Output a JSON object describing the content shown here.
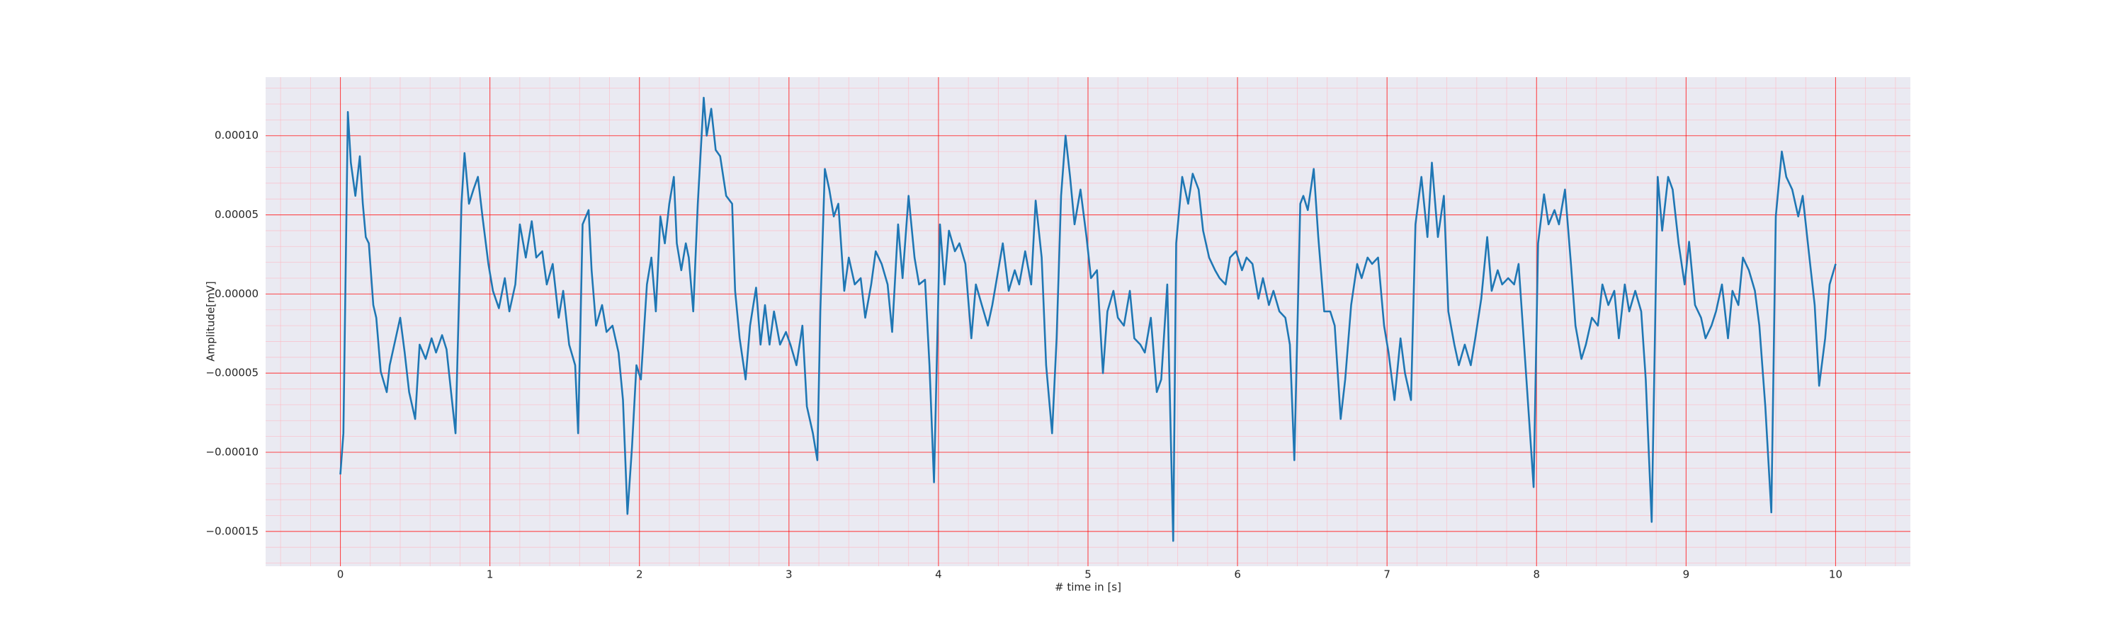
{
  "chart_data": {
    "type": "line",
    "xlabel": "# time in [s]",
    "ylabel": "Amplitude[mV]",
    "x": [
      0,
      0.02,
      0.05,
      0.07,
      0.1,
      0.13,
      0.15,
      0.17,
      0.19,
      0.22,
      0.24,
      0.27,
      0.31,
      0.33,
      0.37,
      0.4,
      0.43,
      0.46,
      0.5,
      0.53,
      0.57,
      0.61,
      0.64,
      0.68,
      0.71,
      0.74,
      0.77,
      0.81,
      0.83,
      0.86,
      0.89,
      0.92,
      0.95,
      0.99,
      1.02,
      1.06,
      1.1,
      1.13,
      1.17,
      1.2,
      1.24,
      1.28,
      1.31,
      1.35,
      1.38,
      1.42,
      1.46,
      1.49,
      1.53,
      1.57,
      1.59,
      1.62,
      1.66,
      1.68,
      1.71,
      1.75,
      1.78,
      1.82,
      1.86,
      1.89,
      1.92,
      1.95,
      1.98,
      2.01,
      2.05,
      2.08,
      2.11,
      2.14,
      2.17,
      2.2,
      2.23,
      2.25,
      2.28,
      2.31,
      2.33,
      2.36,
      2.39,
      2.43,
      2.45,
      2.48,
      2.51,
      2.54,
      2.58,
      2.62,
      2.64,
      2.67,
      2.71,
      2.74,
      2.78,
      2.81,
      2.84,
      2.87,
      2.9,
      2.94,
      2.98,
      3.01,
      3.05,
      3.09,
      3.12,
      3.16,
      3.19,
      3.21,
      3.24,
      3.27,
      3.3,
      3.33,
      3.37,
      3.4,
      3.44,
      3.48,
      3.51,
      3.55,
      3.58,
      3.62,
      3.66,
      3.69,
      3.73,
      3.76,
      3.8,
      3.84,
      3.87,
      3.91,
      3.94,
      3.97,
      4.01,
      4.04,
      4.07,
      4.11,
      4.14,
      4.18,
      4.22,
      4.25,
      4.29,
      4.33,
      4.36,
      4.4,
      4.43,
      4.47,
      4.51,
      4.54,
      4.58,
      4.62,
      4.65,
      4.69,
      4.72,
      4.76,
      4.79,
      4.82,
      4.85,
      4.88,
      4.91,
      4.95,
      4.99,
      5.02,
      5.06,
      5.1,
      5.13,
      5.17,
      5.2,
      5.24,
      5.28,
      5.31,
      5.35,
      5.38,
      5.42,
      5.46,
      5.49,
      5.53,
      5.57,
      5.59,
      5.63,
      5.67,
      5.7,
      5.74,
      5.77,
      5.81,
      5.85,
      5.88,
      5.92,
      5.95,
      5.99,
      6.03,
      6.06,
      6.1,
      6.14,
      6.17,
      6.21,
      6.24,
      6.28,
      6.32,
      6.35,
      6.38,
      6.42,
      6.44,
      6.47,
      6.51,
      6.54,
      6.58,
      6.62,
      6.65,
      6.69,
      6.72,
      6.76,
      6.8,
      6.83,
      6.87,
      6.9,
      6.94,
      6.98,
      7.01,
      7.05,
      7.09,
      7.12,
      7.16,
      7.19,
      7.23,
      7.27,
      7.3,
      7.34,
      7.38,
      7.41,
      7.45,
      7.48,
      7.52,
      7.56,
      7.59,
      7.63,
      7.67,
      7.7,
      7.74,
      7.77,
      7.81,
      7.85,
      7.88,
      7.92,
      7.95,
      7.98,
      8.01,
      8.05,
      8.08,
      8.12,
      8.15,
      8.19,
      8.23,
      8.26,
      8.3,
      8.33,
      8.37,
      8.41,
      8.44,
      8.48,
      8.52,
      8.55,
      8.59,
      8.62,
      8.66,
      8.7,
      8.73,
      8.77,
      8.81,
      8.84,
      8.88,
      8.91,
      8.95,
      8.99,
      9.02,
      9.06,
      9.1,
      9.13,
      9.17,
      9.2,
      9.24,
      9.28,
      9.31,
      9.35,
      9.38,
      9.42,
      9.46,
      9.49,
      9.53,
      9.57,
      9.6,
      9.64,
      9.67,
      9.71,
      9.75,
      9.78,
      9.82,
      9.86,
      9.89,
      9.93,
      9.96,
      10.0
    ],
    "series": [
      {
        "color": "#1f77b4",
        "values": [
          -0.000114,
          -8.8e-05,
          0.000115,
          8.3e-05,
          6.2e-05,
          8.7e-05,
          5.7e-05,
          3.6e-05,
          3.2e-05,
          -7e-06,
          -1.5e-05,
          -4.9e-05,
          -6.2e-05,
          -4.5e-05,
          -2.8e-05,
          -1.5e-05,
          -3.7e-05,
          -6.2e-05,
          -7.9e-05,
          -3.2e-05,
          -4.1e-05,
          -2.8e-05,
          -3.7e-05,
          -2.6e-05,
          -3.5e-05,
          -6.2e-05,
          -8.8e-05,
          5.7e-05,
          8.9e-05,
          5.7e-05,
          6.6e-05,
          7.4e-05,
          4.9e-05,
          1.9e-05,
          2e-06,
          -9e-06,
          1e-05,
          -1.1e-05,
          6e-06,
          4.4e-05,
          2.3e-05,
          4.6e-05,
          2.3e-05,
          2.7e-05,
          6e-06,
          1.9e-05,
          -1.5e-05,
          2e-06,
          -3.2e-05,
          -4.5e-05,
          -8.8e-05,
          4.4e-05,
          5.3e-05,
          1.5e-05,
          -2e-05,
          -7e-06,
          -2.4e-05,
          -2e-05,
          -3.7e-05,
          -6.7e-05,
          -0.000139,
          -9.7e-05,
          -4.5e-05,
          -5.4e-05,
          6e-06,
          2.3e-05,
          -1.1e-05,
          4.9e-05,
          3.2e-05,
          5.7e-05,
          7.4e-05,
          3.2e-05,
          1.5e-05,
          3.2e-05,
          2.3e-05,
          -1.1e-05,
          5.7e-05,
          0.000124,
          0.0001,
          0.000117,
          9.1e-05,
          8.7e-05,
          6.2e-05,
          5.7e-05,
          2e-06,
          -2.8e-05,
          -5.4e-05,
          -2e-05,
          4e-06,
          -3.2e-05,
          -7e-06,
          -3.2e-05,
          -1.1e-05,
          -3.2e-05,
          -2.4e-05,
          -3.2e-05,
          -4.5e-05,
          -2e-05,
          -7.1e-05,
          -8.8e-05,
          -0.000105,
          -1.1e-05,
          7.9e-05,
          6.6e-05,
          4.9e-05,
          5.7e-05,
          2e-06,
          2.3e-05,
          6e-06,
          1e-05,
          -1.5e-05,
          6e-06,
          2.7e-05,
          1.9e-05,
          6e-06,
          -2.4e-05,
          4.4e-05,
          1e-05,
          6.2e-05,
          2.3e-05,
          6e-06,
          9e-06,
          -4.5e-05,
          -0.000119,
          4.4e-05,
          6e-06,
          4e-05,
          2.7e-05,
          3.2e-05,
          1.9e-05,
          -2.8e-05,
          6e-06,
          -7e-06,
          -2e-05,
          -7e-06,
          1.5e-05,
          3.2e-05,
          2e-06,
          1.5e-05,
          6e-06,
          2.7e-05,
          6e-06,
          5.9e-05,
          2.3e-05,
          -4.5e-05,
          -8.8e-05,
          -2.8e-05,
          6.2e-05,
          0.0001,
          7.4e-05,
          4.4e-05,
          6.6e-05,
          3.6e-05,
          1e-05,
          1.5e-05,
          -5e-05,
          -1.1e-05,
          2e-06,
          -1.5e-05,
          -2e-05,
          2e-06,
          -2.8e-05,
          -3.2e-05,
          -3.7e-05,
          -1.5e-05,
          -6.2e-05,
          -5.4e-05,
          6e-06,
          -0.000156,
          3.2e-05,
          7.4e-05,
          5.7e-05,
          7.6e-05,
          6.6e-05,
          4e-05,
          2.3e-05,
          1.5e-05,
          1e-05,
          6e-06,
          2.3e-05,
          2.7e-05,
          1.5e-05,
          2.3e-05,
          1.9e-05,
          -3e-06,
          1e-05,
          -7e-06,
          2e-06,
          -1.1e-05,
          -1.5e-05,
          -3.2e-05,
          -0.000105,
          5.7e-05,
          6.2e-05,
          5.3e-05,
          7.9e-05,
          3.6e-05,
          -1.1e-05,
          -1.1e-05,
          -2e-05,
          -7.9e-05,
          -5.4e-05,
          -7e-06,
          1.9e-05,
          1e-05,
          2.3e-05,
          1.9e-05,
          2.3e-05,
          -2e-05,
          -3.7e-05,
          -6.7e-05,
          -2.8e-05,
          -5e-05,
          -6.7e-05,
          4.4e-05,
          7.4e-05,
          3.6e-05,
          8.3e-05,
          3.6e-05,
          6.2e-05,
          -1.1e-05,
          -3.2e-05,
          -4.5e-05,
          -3.2e-05,
          -4.5e-05,
          -2.8e-05,
          -3e-06,
          3.6e-05,
          2e-06,
          1.5e-05,
          6e-06,
          1e-05,
          6e-06,
          1.9e-05,
          -3.7e-05,
          -7.9e-05,
          -0.000122,
          3.2e-05,
          6.3e-05,
          4.4e-05,
          5.3e-05,
          4.4e-05,
          6.6e-05,
          1.9e-05,
          -2e-05,
          -4.1e-05,
          -3.2e-05,
          -1.5e-05,
          -2e-05,
          6e-06,
          -7e-06,
          2e-06,
          -2.8e-05,
          6e-06,
          -1.1e-05,
          2e-06,
          -1.1e-05,
          -5.4e-05,
          -0.000144,
          7.4e-05,
          4e-05,
          7.4e-05,
          6.6e-05,
          3.2e-05,
          6e-06,
          3.3e-05,
          -7e-06,
          -1.5e-05,
          -2.8e-05,
          -2e-05,
          -1.1e-05,
          6e-06,
          -2.8e-05,
          2e-06,
          -7e-06,
          2.3e-05,
          1.5e-05,
          2e-06,
          -2e-05,
          -7.1e-05,
          -0.000138,
          4.9e-05,
          9e-05,
          7.4e-05,
          6.6e-05,
          4.9e-05,
          6.2e-05,
          2.7e-05,
          -7e-06,
          -5.8e-05,
          -2.8e-05,
          6e-06,
          1.9e-05
        ]
      }
    ],
    "xlim": [
      -0.5,
      10.5
    ],
    "xticks": [
      0,
      1,
      2,
      3,
      4,
      5,
      6,
      7,
      8,
      9,
      10
    ],
    "ylim": [
      -0.000172,
      0.000137
    ],
    "yticks": [
      {
        "value": -0.00015,
        "label": "−0.00015"
      },
      {
        "value": -0.0001,
        "label": "−0.00010"
      },
      {
        "value": -5e-05,
        "label": "−0.00005"
      },
      {
        "value": 0,
        "label": "0.00000"
      },
      {
        "value": 5e-05,
        "label": "0.00005"
      },
      {
        "value": 0.0001,
        "label": "0.00010"
      }
    ],
    "grid": true
  }
}
